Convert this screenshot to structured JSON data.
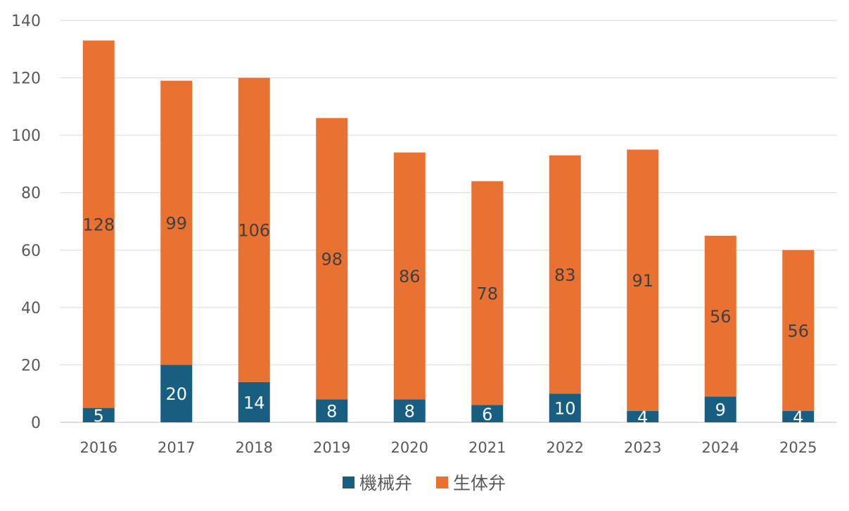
{
  "chart_data": {
    "type": "bar",
    "stacked": true,
    "title": "",
    "xlabel": "",
    "ylabel": "",
    "ylim": [
      0,
      140
    ],
    "yticks": [
      0,
      20,
      40,
      60,
      80,
      100,
      120,
      140
    ],
    "grid": true,
    "legend_position": "bottom-center",
    "categories": [
      "2016",
      "2017",
      "2018",
      "2019",
      "2020",
      "2021",
      "2022",
      "2023",
      "2024",
      "2025"
    ],
    "series": [
      {
        "name": "機械弁",
        "color": "#175e80",
        "label_color": "#ffffff",
        "values": [
          5,
          20,
          14,
          8,
          8,
          6,
          10,
          4,
          9,
          4
        ]
      },
      {
        "name": "生体弁",
        "color": "#e97132",
        "label_color": "#404040",
        "values": [
          128,
          99,
          106,
          98,
          86,
          78,
          83,
          91,
          56,
          56
        ]
      }
    ]
  }
}
